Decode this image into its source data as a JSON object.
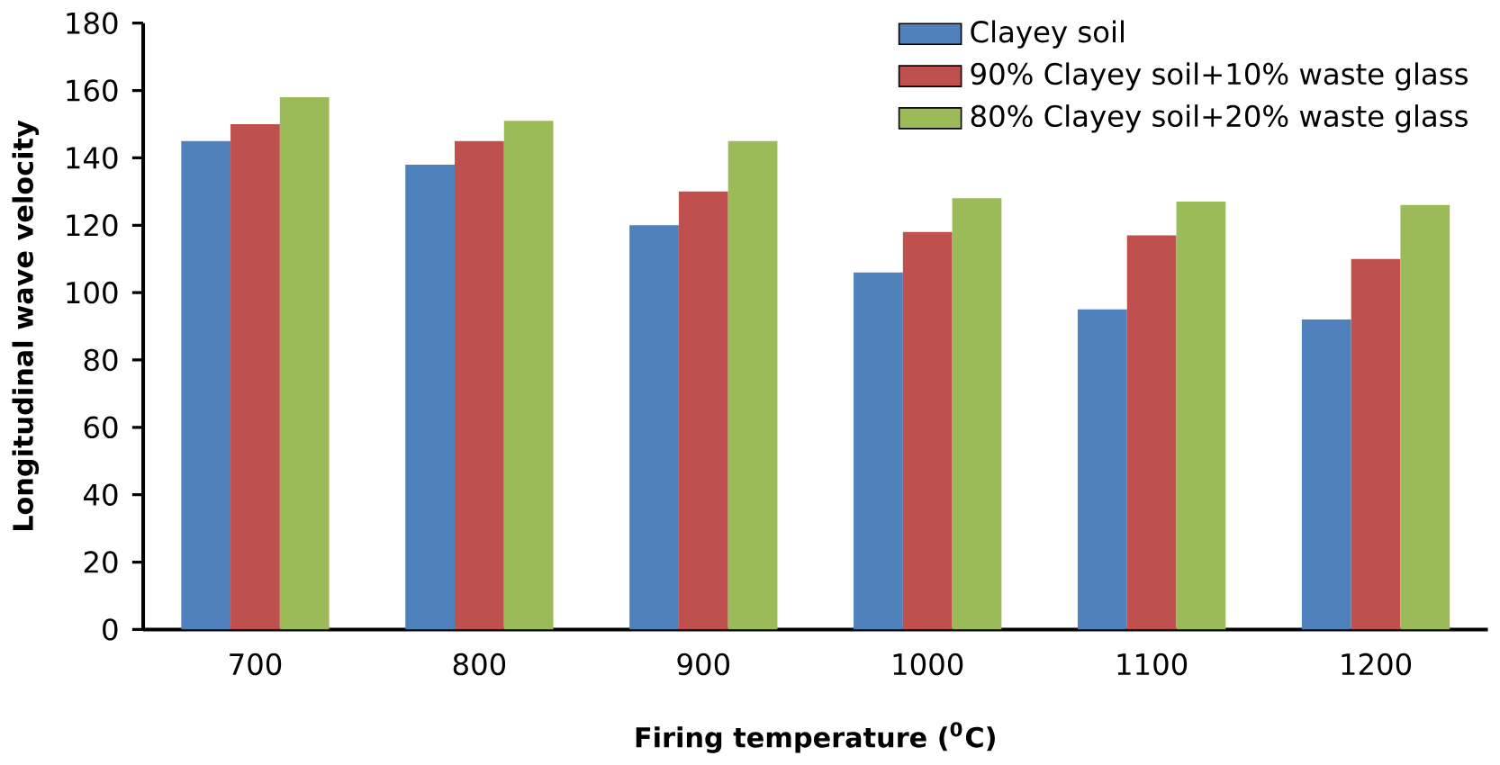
{
  "chart_data": {
    "type": "bar",
    "xlabel": "Firing temperature ($^{0}$C)",
    "ylabel": "Longitudinal wave velocity",
    "categories": [
      "700",
      "800",
      "900",
      "1000",
      "1100",
      "1200"
    ],
    "series": [
      {
        "name": "Clayey soil",
        "color": "#4f81bd",
        "values": [
          145,
          138,
          120,
          106,
          95,
          92
        ]
      },
      {
        "name": "90% Clayey soil+10% waste glass",
        "color": "#c0504d",
        "values": [
          150,
          145,
          130,
          118,
          117,
          110
        ]
      },
      {
        "name": "80% Clayey soil+20% waste glass",
        "color": "#9bbb59",
        "values": [
          158,
          151,
          145,
          128,
          127,
          126
        ]
      }
    ],
    "ylim": [
      0,
      180
    ],
    "yticks": [
      0,
      20,
      40,
      60,
      80,
      100,
      120,
      140,
      160,
      180
    ],
    "grid": false,
    "legend": "top right"
  }
}
